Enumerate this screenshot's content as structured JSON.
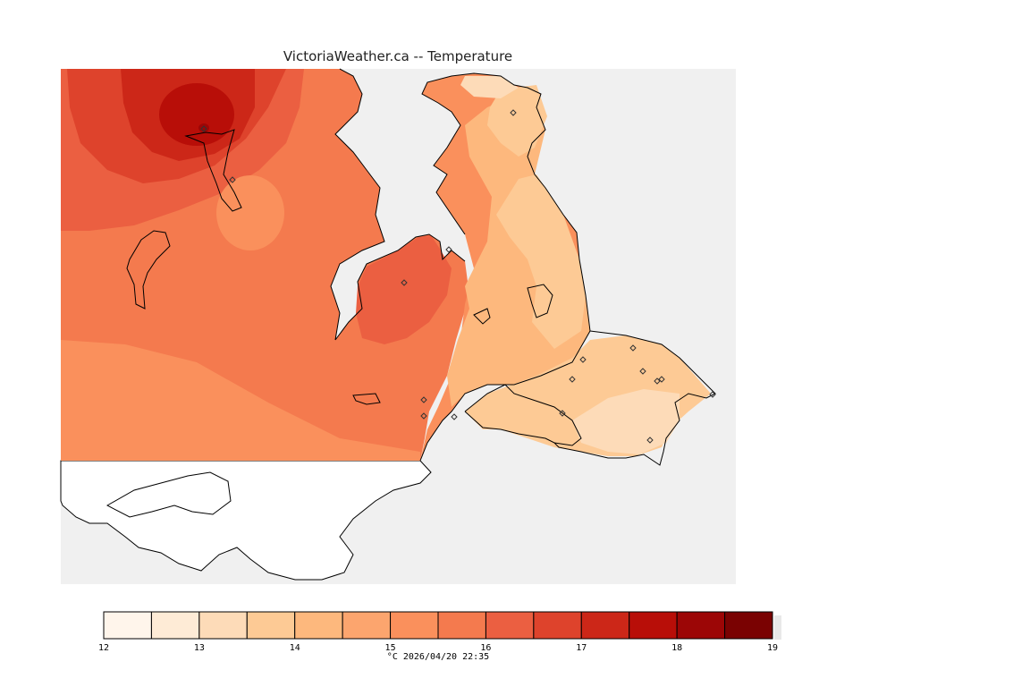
{
  "title": "VictoriaWeather.ca -- Temperature",
  "colorbar": {
    "ticks": [
      "12",
      "13",
      "14",
      "15",
      "16",
      "17",
      "18",
      "19"
    ],
    "bins": [
      {
        "from": 12.0,
        "to": 12.5,
        "color": "#fff5eb"
      },
      {
        "from": 12.5,
        "to": 13.0,
        "color": "#feebd6"
      },
      {
        "from": 13.0,
        "to": 13.5,
        "color": "#fddbb8"
      },
      {
        "from": 13.5,
        "to": 14.0,
        "color": "#fdca95"
      },
      {
        "from": 14.0,
        "to": 14.5,
        "color": "#fdb87d"
      },
      {
        "from": 14.5,
        "to": 15.0,
        "color": "#fca56e"
      },
      {
        "from": 15.0,
        "to": 15.5,
        "color": "#fa905c"
      },
      {
        "from": 15.5,
        "to": 16.0,
        "color": "#f47a4e"
      },
      {
        "from": 16.0,
        "to": 16.5,
        "color": "#eb5f41"
      },
      {
        "from": 16.5,
        "to": 17.0,
        "color": "#de432c"
      },
      {
        "from": 17.0,
        "to": 17.5,
        "color": "#cc2718"
      },
      {
        "from": 17.5,
        "to": 18.0,
        "color": "#b80e08"
      },
      {
        "from": 18.0,
        "to": 18.5,
        "color": "#9c0606"
      },
      {
        "from": 18.5,
        "to": 19.0,
        "color": "#7a0202"
      }
    ],
    "caption": "°C  2026/04/20 22:35"
  },
  "colors": {
    "water": "#f0f0f0",
    "land_outside": "#ffffff",
    "coastline": "#000000"
  }
}
